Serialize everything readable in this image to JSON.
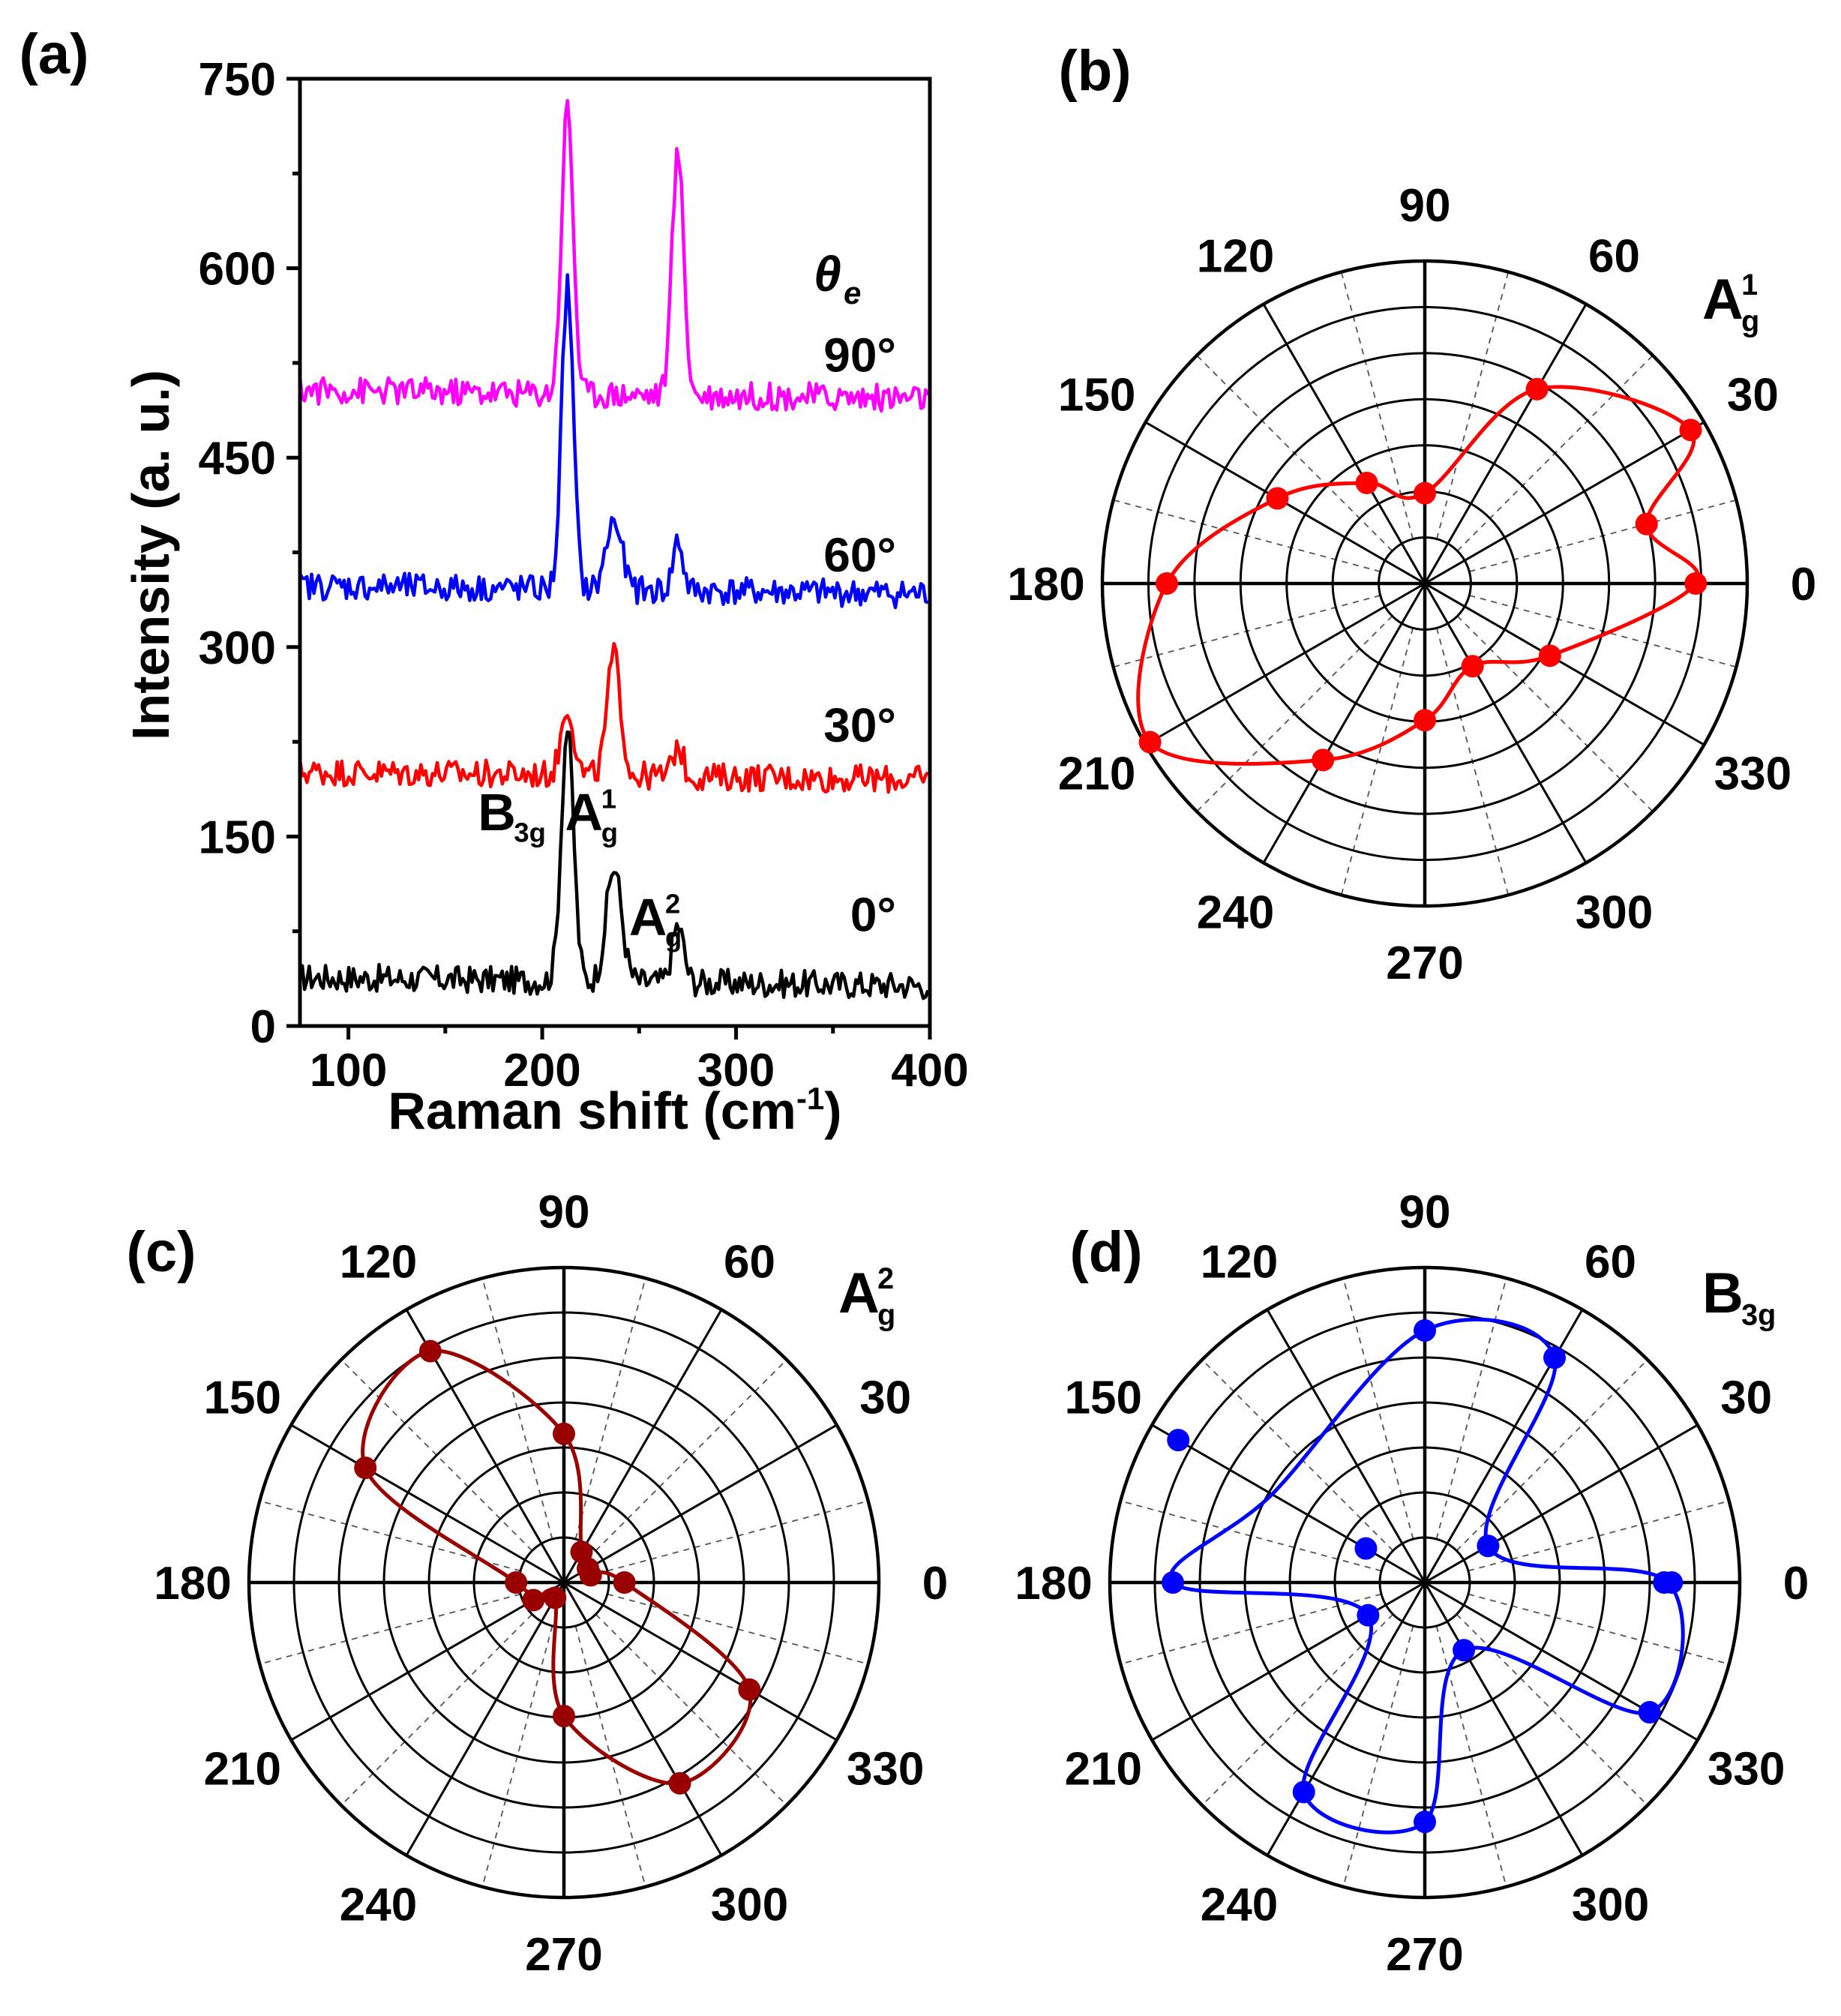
{
  "panels": {
    "a": "(a)",
    "b": "(b)",
    "c": "(c)",
    "d": "(d)"
  },
  "chart_data": [
    {
      "type": "line",
      "panel": "a",
      "xlabel": "Raman shift (cm",
      "xlabel_sup": "-1",
      "xlabel_tail": ")",
      "ylabel": "Intensity (a. u.)",
      "xlim": [
        75,
        400
      ],
      "ylim": [
        0,
        750
      ],
      "xticks": [
        100,
        200,
        300,
        400
      ],
      "yticks": [
        0,
        150,
        300,
        450,
        600,
        750
      ],
      "legend_title": "θ",
      "legend_title_sub": "e",
      "peak_labels": [
        {
          "base": "B",
          "sub": "3g",
          "sup": "",
          "x": 190,
          "y": 155
        },
        {
          "base": "A",
          "sub": "g",
          "sup": "1",
          "x": 235,
          "y": 155
        },
        {
          "base": "A",
          "sub": "g",
          "sup": "2",
          "x": 268,
          "y": 72
        }
      ],
      "series": [
        {
          "name": "0°",
          "color": "#000000",
          "baseline": 35,
          "peaks": [
            [
              213,
              200,
              3.2
            ],
            [
              237,
              90,
              4.0
            ],
            [
              270,
              45,
              3.0
            ]
          ],
          "label_y": 75
        },
        {
          "name": "30°",
          "color": "#ff0000",
          "baseline": 198,
          "peaks": [
            [
              213,
              55,
              3.2
            ],
            [
              237,
              95,
              3.5
            ],
            [
              270,
              25,
              2.5
            ]
          ],
          "label_y": 225
        },
        {
          "name": "60°",
          "color": "#0000ff",
          "baseline": 345,
          "peaks": [
            [
              213,
              240,
              3.0
            ],
            [
              237,
              55,
              4.0
            ],
            [
              270,
              40,
              2.5
            ]
          ],
          "label_y": 360
        },
        {
          "name": "90°",
          "color": "#ff00ff",
          "baseline": 500,
          "peaks": [
            [
              213,
              228,
              3.0
            ],
            [
              270,
              192,
              3.0
            ]
          ],
          "label_y": 518
        }
      ]
    },
    {
      "type": "polar-scatter",
      "panel": "b",
      "mode": "A_g^1",
      "label": {
        "base": "A",
        "sub": "g",
        "sup": "1"
      },
      "color": "#ff0000",
      "angle_labels": [
        "0",
        "30",
        "60",
        "90",
        "120",
        "150",
        "180",
        "210",
        "240",
        "270",
        "300",
        "330"
      ],
      "rings": 7,
      "points": [
        [
          0,
          1.05
        ],
        [
          15,
          0.89
        ],
        [
          30,
          1.19
        ],
        [
          60,
          0.87
        ],
        [
          90,
          0.35
        ],
        [
          120,
          0.45
        ],
        [
          150,
          0.66
        ],
        [
          180,
          1.0
        ],
        [
          210,
          1.23
        ],
        [
          240,
          0.79
        ],
        [
          270,
          0.53
        ],
        [
          300,
          0.37
        ],
        [
          330,
          0.56
        ]
      ]
    },
    {
      "type": "polar-scatter",
      "panel": "c",
      "mode": "A_g^2",
      "label": {
        "base": "A",
        "sub": "g",
        "sup": "2"
      },
      "color": "#990000",
      "angle_labels": [
        "0",
        "30",
        "60",
        "90",
        "120",
        "150",
        "180",
        "210",
        "240",
        "270",
        "300",
        "330"
      ],
      "rings": 7,
      "points": [
        [
          0,
          0.24
        ],
        [
          15,
          0.11
        ],
        [
          30,
          0.11
        ],
        [
          60,
          0.14
        ],
        [
          90,
          0.59
        ],
        [
          120,
          1.06
        ],
        [
          150,
          0.91
        ],
        [
          180,
          0.19
        ],
        [
          210,
          0.14
        ],
        [
          240,
          0.07
        ],
        [
          270,
          0.53
        ],
        [
          300,
          0.92
        ],
        [
          330,
          0.85
        ]
      ]
    },
    {
      "type": "polar-scatter",
      "panel": "d",
      "mode": "B_3g",
      "label": {
        "base": "B",
        "sub": "3g",
        "sup": ""
      },
      "color": "#0000ff",
      "angle_labels": [
        "0",
        "30",
        "60",
        "90",
        "120",
        "150",
        "180",
        "210",
        "240",
        "270",
        "300",
        "330"
      ],
      "rings": 7,
      "points": [
        [
          0,
          0.98
        ],
        [
          0,
          0.95
        ],
        [
          30,
          0.29
        ],
        [
          60,
          1.03
        ],
        [
          90,
          1.0
        ],
        [
          150,
          0.27
        ],
        [
          150,
          1.13
        ],
        [
          180,
          1.0
        ],
        [
          210,
          0.26
        ],
        [
          240,
          0.96
        ],
        [
          270,
          0.95
        ],
        [
          300,
          0.31
        ],
        [
          330,
          1.03
        ]
      ]
    }
  ]
}
